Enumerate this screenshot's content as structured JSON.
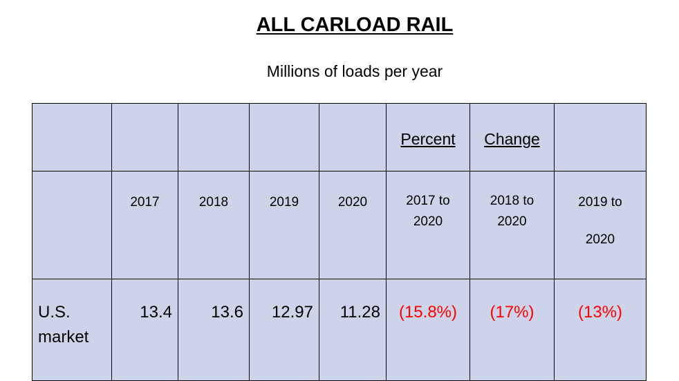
{
  "title": "ALL CARLOAD RAIL",
  "subtitle": "Millions of loads per year",
  "header_top": {
    "percent": "Percent",
    "change": "Change"
  },
  "columns": {
    "y2017": "2017",
    "y2018": "2018",
    "y2019": "2019",
    "y2020": "2020",
    "c1718_a": "2017 to",
    "c1718_b": "2020",
    "c1820_a": "2018 to",
    "c1820_b": "2020",
    "c1920_a": "2019 to",
    "c1920_b": "2020"
  },
  "row": {
    "label": "U.S. market",
    "v2017": "13.4",
    "v2018": "13.6",
    "v2019": "12.97",
    "v2020": "11.28",
    "pct_2017_2020": "(15.8%)",
    "pct_2018_2020": "(17%)",
    "pct_2019_2020": "(13%)"
  },
  "colors": {
    "cell_background": "#cdd3e8",
    "negative_text": "#ff0000"
  }
}
